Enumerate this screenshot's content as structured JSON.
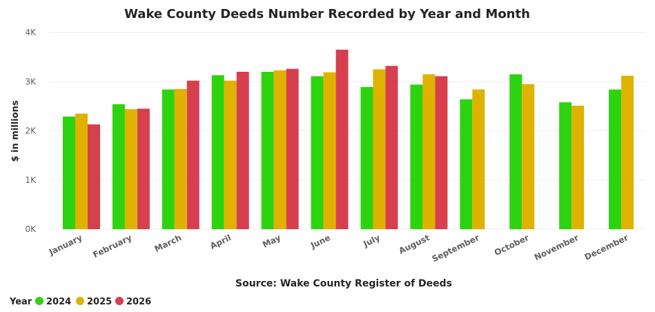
{
  "chart_data": {
    "type": "bar",
    "title": "Wake County Deeds Number Recorded by Year and Month",
    "xlabel": "Source: Wake County Register of Deeds",
    "ylabel": "$ in millions",
    "ylim": [
      0,
      4000
    ],
    "yticks": [
      {
        "value": 0,
        "label": "0K"
      },
      {
        "value": 1000,
        "label": "1K"
      },
      {
        "value": 2000,
        "label": "2K"
      },
      {
        "value": 3000,
        "label": "3K"
      },
      {
        "value": 4000,
        "label": "4K"
      }
    ],
    "grid": true,
    "legend": {
      "title": "Year",
      "position": "bottom-left"
    },
    "categories": [
      "January",
      "February",
      "March",
      "April",
      "May",
      "June",
      "July",
      "August",
      "September",
      "October",
      "November",
      "December"
    ],
    "series": [
      {
        "name": "2024",
        "color": "#2ed30f",
        "values": [
          2290,
          2540,
          2840,
          3130,
          3200,
          3110,
          2890,
          2940,
          2640,
          3150,
          2580,
          2840
        ]
      },
      {
        "name": "2025",
        "color": "#e0b200",
        "values": [
          2350,
          2440,
          2850,
          3020,
          3230,
          3190,
          3250,
          3150,
          2840,
          2950,
          2510,
          3120
        ]
      },
      {
        "name": "2026",
        "color": "#d6404e",
        "values": [
          2130,
          2450,
          3020,
          3200,
          3260,
          3650,
          3320,
          3110,
          null,
          null,
          null,
          null
        ]
      }
    ]
  }
}
